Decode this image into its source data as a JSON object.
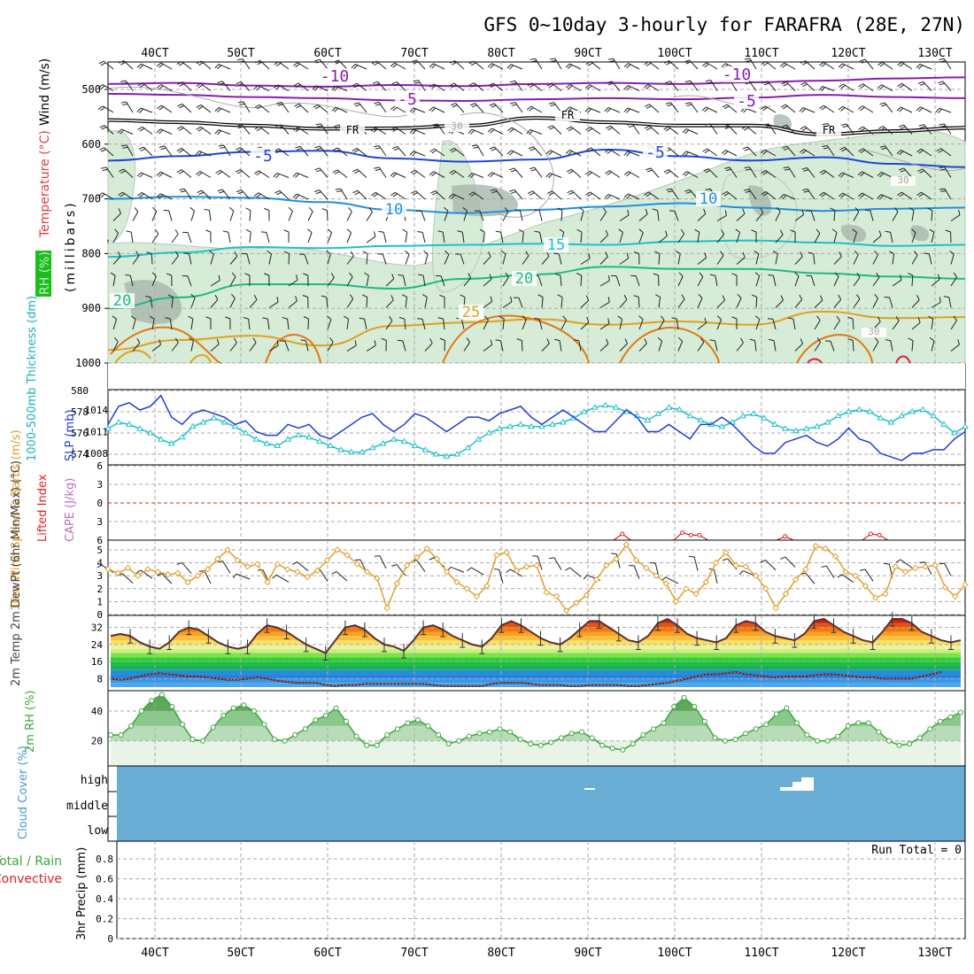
{
  "title": "GFS 0~10day 3-hourly for FARAFRA (28E, 27N)",
  "colors": {
    "temp_cold": "#8a1cb0",
    "temp_fr": "#000000",
    "temp_5": "#1f46d6",
    "temp_10": "#1f8fe0",
    "temp_15": "#20c0c8",
    "temp_20": "#20b888",
    "temp_25": "#e0a020",
    "temp_30": "#e07818",
    "temp_35": "#e02040",
    "rh_fill": "#d6ecd6",
    "rh_fill_dark": "#a8b8ac",
    "slp": "#1f3fd0",
    "thickness": "#20c0c8",
    "lifted_index": "#e02020",
    "cape": "#c070c0",
    "wind_speed": "#e0a030",
    "barb": "#000000",
    "rh2m": "#3aa83a",
    "cloud": "#6aaed6"
  },
  "chart_data": [
    {
      "id": "upper-air",
      "type": "contour",
      "x_ticks": [
        "40CT",
        "50CT",
        "60CT",
        "70CT",
        "80CT",
        "90CT",
        "100CT",
        "110CT",
        "120CT",
        "130CT"
      ],
      "y_label_parts": [
        "RH (%)",
        "Temperature (°C)",
        "Wind (m/s)",
        "(millibars)"
      ],
      "y_ticks": [
        500,
        600,
        700,
        800,
        900,
        1000
      ],
      "ylim": [
        450,
        1000
      ],
      "contour_labels": [
        "-10",
        "-10",
        "-5",
        "-5",
        "FR",
        "FR",
        "FR",
        "-5",
        "-5",
        "10",
        "10",
        "15",
        "20",
        "20",
        "25",
        "30",
        "30",
        "30"
      ],
      "temperature_levels": [
        {
          "label": "-10",
          "mb": [
            490,
            488,
            493,
            495,
            492,
            494,
            490,
            488,
            490,
            487,
            484,
            480,
            478
          ]
        },
        {
          "label": "-5",
          "mb": [
            508,
            510,
            514,
            516,
            520,
            521,
            518,
            516,
            518,
            515,
            510,
            514,
            516
          ]
        },
        {
          "label": "FR",
          "mb": [
            556,
            560,
            566,
            572,
            571,
            566,
            552,
            560,
            566,
            566,
            582,
            576,
            570
          ]
        },
        {
          "label": "5",
          "mb": [
            630,
            622,
            614,
            612,
            626,
            632,
            628,
            610,
            622,
            630,
            624,
            636,
            642
          ]
        },
        {
          "label": "10",
          "mb": [
            700,
            696,
            698,
            706,
            720,
            726,
            720,
            714,
            708,
            716,
            722,
            718,
            716
          ]
        },
        {
          "label": "15",
          "mb": [
            806,
            798,
            788,
            790,
            786,
            784,
            782,
            784,
            778,
            776,
            780,
            786,
            784
          ]
        },
        {
          "label": "20",
          "mb": [
            900,
            880,
            856,
            856,
            864,
            846,
            838,
            824,
            828,
            828,
            836,
            842,
            846
          ]
        },
        {
          "label": "25",
          "mb": [
            976,
            958,
            950,
            968,
            932,
            926,
            920,
            930,
            924,
            930,
            906,
            918,
            916
          ]
        }
      ]
    },
    {
      "id": "slp-thickness",
      "type": "line",
      "y_label_left": "1000-500mb Thickness (dm)",
      "y_label_right": "SLP (mb)",
      "thickness_ticks": [
        574,
        576,
        578,
        580
      ],
      "slp_ticks": [
        1008,
        1011,
        1014
      ],
      "series": [
        {
          "name": "SLP",
          "values": [
            1012,
            1014.5,
            1015,
            1014,
            1014.5,
            1016,
            1013,
            1012,
            1013.5,
            1014,
            1013.5,
            1013,
            1012,
            1012.5,
            1011,
            1010.5,
            1010.5,
            1012,
            1011.5,
            1012,
            1010.5,
            1010,
            1011,
            1012,
            1013,
            1013.5,
            1012,
            1011,
            1012,
            1013.5,
            1013,
            1012,
            1011,
            1012,
            1013,
            1013,
            1012.5,
            1013.5,
            1014,
            1014.5,
            1013,
            1012,
            1013,
            1014,
            1013,
            1012,
            1011,
            1011,
            1012.5,
            1014,
            1013,
            1011,
            1011,
            1012,
            1011,
            1010,
            1012,
            1012,
            1013,
            1012,
            1010.5,
            1009,
            1008,
            1008,
            1009.5,
            1010,
            1010.5,
            1009.5,
            1009,
            1010,
            1011.5,
            1010,
            1009.5,
            1008,
            1007.5,
            1007,
            1008,
            1008,
            1008.5,
            1008.5,
            1010,
            1011
          ]
        },
        {
          "name": "Thickness",
          "values": [
            576.4,
            577,
            576.8,
            576.4,
            576,
            575.4,
            575,
            575.6,
            576.6,
            577,
            577.4,
            577,
            576.6,
            576,
            575.4,
            575,
            574.8,
            575.4,
            575.8,
            575.6,
            575.2,
            574.8,
            574.4,
            574.2,
            574.2,
            574.6,
            575,
            575.4,
            575.2,
            574.8,
            574.4,
            574,
            573.8,
            574,
            574.6,
            575.4,
            576,
            576.4,
            576.6,
            576.8,
            576.6,
            576.6,
            576.8,
            577,
            577.4,
            578,
            578.4,
            578.6,
            578.4,
            578,
            577.6,
            577.2,
            577.8,
            578.4,
            578.2,
            577.6,
            577.2,
            576.8,
            576.6,
            577,
            577.6,
            577.8,
            577.4,
            576.8,
            576.4,
            576.2,
            576.4,
            576.6,
            577,
            577.6,
            578,
            578.2,
            578,
            577.4,
            577,
            577.6,
            578,
            578.2,
            577.6,
            576.8,
            576,
            576.6
          ]
        }
      ]
    },
    {
      "id": "stability",
      "type": "line",
      "y_label_left": "Lifted Index",
      "y_label_right": "CAPE (J/kg)",
      "y_ticks": [
        "-6",
        "-3",
        "0",
        "3",
        "6"
      ],
      "series": [
        {
          "name": "Lifted Index",
          "segments": [
            [
              [
                59,
                6
              ],
              [
                60,
                5
              ],
              [
                61,
                6
              ]
            ],
            [
              [
                66,
                6
              ],
              [
                67,
                4.8
              ],
              [
                68,
                5.2
              ],
              [
                69,
                5.2
              ],
              [
                70,
                6
              ]
            ],
            [
              [
                78,
                6
              ],
              [
                79,
                5.4
              ],
              [
                80,
                6
              ]
            ],
            [
              [
                88,
                6
              ],
              [
                89,
                5
              ],
              [
                90,
                5.2
              ],
              [
                91,
                6
              ]
            ]
          ]
        }
      ]
    },
    {
      "id": "wind10m",
      "type": "line",
      "y_label": "10m Wind Speed & Barbs (m/s)",
      "y_ticks": [
        0,
        1,
        2,
        3,
        4,
        5
      ],
      "series": [
        {
          "name": "Wind Speed",
          "values": [
            3.5,
            3.2,
            3.6,
            3,
            3.5,
            3.3,
            3.1,
            3.2,
            2.5,
            3,
            3.5,
            4.3,
            5,
            4.2,
            3.7,
            3.9,
            2.5,
            3.9,
            3.5,
            3.3,
            2.9,
            3.4,
            4.2,
            5,
            4.6,
            3.9,
            3.3,
            2.8,
            0.5,
            2.4,
            3.8,
            4.4,
            5.1,
            4.3,
            3.3,
            2.5,
            2,
            1.4,
            2.2,
            4.6,
            4.8,
            3.4,
            3.7,
            3.8,
            1.7,
            1.4,
            0.3,
            0.9,
            1.5,
            2.7,
            3.8,
            4.3,
            5.4,
            4.2,
            3.6,
            3,
            2.4,
            1,
            2,
            1.6,
            2.5,
            4,
            4.8,
            3.8,
            3.7,
            3,
            2,
            0.5,
            1.6,
            2.7,
            3.5,
            5.3,
            5.1,
            4.5,
            3.3,
            3,
            2.2,
            1.3,
            1.6,
            3.7,
            3.3,
            3.6,
            3.7,
            3.8,
            2.1,
            1.4,
            2.3
          ]
        }
      ]
    },
    {
      "id": "temp2m",
      "type": "area",
      "y_label": "2m Temp 2m DewPt (6hr Min/Max) (°C)",
      "y_ticks": [
        8,
        16,
        24,
        32
      ],
      "series": [
        {
          "name": "2m Temp",
          "values": [
            28,
            29,
            28,
            25,
            23,
            22,
            25,
            30,
            32,
            31,
            28,
            25,
            23,
            22,
            23,
            29,
            33,
            32,
            30,
            27,
            24,
            22,
            20,
            26,
            32,
            33,
            31,
            27,
            24,
            23,
            21,
            26,
            32,
            33,
            31,
            28,
            26,
            24,
            23,
            27,
            33,
            35,
            33,
            30,
            27,
            25,
            24,
            27,
            31,
            35,
            35,
            32,
            29,
            26,
            25,
            28,
            34,
            36,
            33,
            29,
            27,
            26,
            25,
            27,
            33,
            35,
            34,
            30,
            28,
            27,
            26,
            29,
            35,
            36,
            33,
            30,
            28,
            26,
            25,
            30,
            36,
            36,
            34,
            30,
            28,
            26,
            25,
            26
          ]
        },
        {
          "name": "2m DewPt",
          "values": [
            8,
            7.5,
            8,
            9,
            10,
            10.5,
            10,
            9.5,
            9,
            9,
            8.5,
            8,
            7.5,
            7.5,
            8,
            8.5,
            8,
            7,
            6.5,
            6,
            6,
            6,
            5,
            4.5,
            5,
            5,
            5.5,
            5.5,
            5.5,
            5.5,
            5.5,
            5.5,
            5.5,
            5,
            4.5,
            4.5,
            4.5,
            4.5,
            4.5,
            5.5,
            6,
            6,
            6,
            5.5,
            5,
            5,
            5,
            4.5,
            4.5,
            5,
            5,
            5,
            5,
            4.5,
            4.5,
            5,
            5.5,
            6,
            7,
            8,
            9,
            10,
            10,
            10.5,
            11,
            10,
            9.5,
            9,
            8.5,
            9,
            9,
            9,
            9.5,
            10,
            10,
            9.5,
            9,
            8.5,
            8.5,
            8,
            8,
            8,
            8,
            9,
            10,
            11
          ]
        }
      ]
    },
    {
      "id": "rh2m",
      "type": "area",
      "y_label": "2m RH (%)",
      "y_ticks": [
        20,
        40
      ],
      "series": [
        {
          "name": "2m RH",
          "values": [
            24,
            24,
            30,
            40,
            47,
            51,
            43,
            31,
            21,
            20,
            29,
            37,
            42,
            44,
            40,
            31,
            21,
            20,
            24,
            28,
            34,
            37,
            42,
            33,
            23,
            17,
            17,
            24,
            28,
            32,
            34,
            30,
            24,
            18,
            20,
            23,
            25,
            26,
            28,
            26,
            21,
            18,
            17,
            19,
            22,
            25,
            26,
            22,
            17,
            15,
            14,
            18,
            24,
            28,
            32,
            43,
            49,
            43,
            33,
            22,
            20,
            21,
            25,
            28,
            31,
            38,
            42,
            32,
            24,
            20,
            20,
            23,
            30,
            32,
            32,
            26,
            20,
            17,
            18,
            22,
            28,
            33,
            36,
            39
          ]
        }
      ]
    },
    {
      "id": "cloud",
      "type": "heatmap",
      "y_label": "Cloud Cover (%)",
      "y_ticks": [
        "high",
        "middle",
        "low"
      ]
    },
    {
      "id": "precip",
      "type": "bar",
      "y_label_left": "Total / Rain",
      "y_label_left2": "Convective",
      "y_label": "3hr Precip (mm)",
      "y_ticks": [
        0,
        0.2,
        0.4,
        0.6,
        0.8
      ],
      "run_total": "Run Total = 0",
      "x_ticks": [
        "40CT",
        "50CT",
        "60CT",
        "70CT",
        "80CT",
        "90CT",
        "100CT",
        "110CT",
        "120CT",
        "130CT"
      ]
    }
  ]
}
